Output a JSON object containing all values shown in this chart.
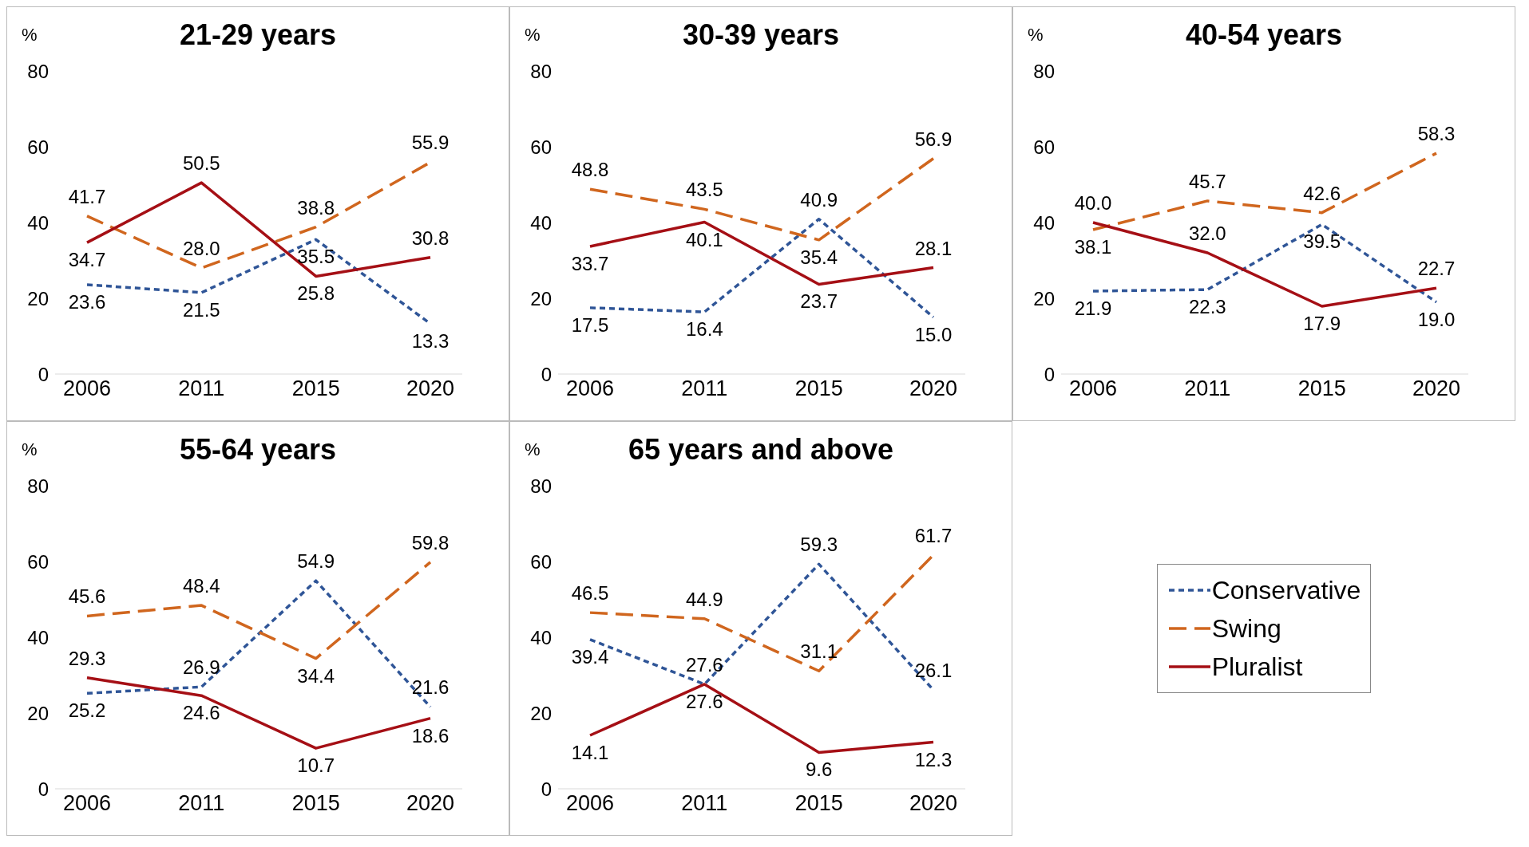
{
  "chart_data": [
    {
      "type": "line",
      "title": "21-29 years",
      "ylabel": "%",
      "categories": [
        "2006",
        "2011",
        "2015",
        "2020"
      ],
      "ylim": [
        0,
        80
      ],
      "yticks": [
        0,
        20,
        40,
        60,
        80
      ],
      "grid": false,
      "marker": "none",
      "series": [
        {
          "color": "#2f5597",
          "line_style": "dotted",
          "values": [
            23.6,
            21.5,
            35.5,
            13.3
          ],
          "value_labels": [
            "23.6",
            "21.5",
            "35.5",
            "13.3"
          ]
        },
        {
          "color": "#d0661e",
          "line_style": "dashed",
          "values": [
            41.7,
            28.0,
            38.8,
            55.9
          ],
          "value_labels": [
            "41.7",
            "28.0",
            "38.8",
            "55.9"
          ]
        },
        {
          "color": "#a50f15",
          "line_style": "solid",
          "values": [
            34.7,
            50.5,
            25.8,
            30.8
          ],
          "value_labels": [
            "34.7",
            "50.5",
            "25.8",
            "30.8"
          ]
        }
      ]
    },
    {
      "type": "line",
      "title": "30-39 years",
      "ylabel": "%",
      "categories": [
        "2006",
        "2011",
        "2015",
        "2020"
      ],
      "ylim": [
        0,
        80
      ],
      "yticks": [
        0,
        20,
        40,
        60,
        80
      ],
      "grid": false,
      "marker": "none",
      "series": [
        {
          "color": "#2f5597",
          "line_style": "dotted",
          "values": [
            17.5,
            16.4,
            40.9,
            15.0
          ],
          "value_labels": [
            "17.5",
            "16.4",
            "40.9",
            "15.0"
          ]
        },
        {
          "color": "#d0661e",
          "line_style": "dashed",
          "values": [
            48.8,
            43.5,
            35.4,
            56.9
          ],
          "value_labels": [
            "48.8",
            "43.5",
            "35.4",
            "56.9"
          ]
        },
        {
          "color": "#a50f15",
          "line_style": "solid",
          "values": [
            33.7,
            40.1,
            23.7,
            28.1
          ],
          "value_labels": [
            "33.7",
            "40.1",
            "23.7",
            "28.1"
          ]
        }
      ]
    },
    {
      "type": "line",
      "title": "40-54 years",
      "ylabel": "%",
      "categories": [
        "2006",
        "2011",
        "2015",
        "2020"
      ],
      "ylim": [
        0,
        80
      ],
      "yticks": [
        0,
        20,
        40,
        60,
        80
      ],
      "grid": false,
      "marker": "none",
      "series": [
        {
          "color": "#2f5597",
          "line_style": "dotted",
          "values": [
            21.9,
            22.3,
            39.5,
            19.0
          ],
          "value_labels": [
            "21.9",
            "22.3",
            "39.5",
            "19.0"
          ]
        },
        {
          "color": "#d0661e",
          "line_style": "dashed",
          "values": [
            38.1,
            45.7,
            42.6,
            58.3
          ],
          "value_labels": [
            "38.1",
            "45.7",
            "42.6",
            "58.3"
          ]
        },
        {
          "color": "#a50f15",
          "line_style": "solid",
          "values": [
            40.0,
            32.0,
            17.9,
            22.7
          ],
          "value_labels": [
            "40.0",
            "32.0",
            "17.9",
            "22.7"
          ]
        }
      ]
    },
    {
      "type": "line",
      "title": "55-64 years",
      "ylabel": "%",
      "categories": [
        "2006",
        "2011",
        "2015",
        "2020"
      ],
      "ylim": [
        0,
        80
      ],
      "yticks": [
        0,
        20,
        40,
        60,
        80
      ],
      "grid": false,
      "marker": "none",
      "series": [
        {
          "color": "#2f5597",
          "line_style": "dotted",
          "values": [
            25.2,
            26.9,
            54.9,
            21.6
          ],
          "value_labels": [
            "25.2",
            "26.9",
            "54.9",
            "21.6"
          ]
        },
        {
          "color": "#d0661e",
          "line_style": "dashed",
          "values": [
            45.6,
            48.4,
            34.4,
            59.8
          ],
          "value_labels": [
            "45.6",
            "48.4",
            "34.4",
            "59.8"
          ]
        },
        {
          "color": "#a50f15",
          "line_style": "solid",
          "values": [
            29.3,
            24.6,
            10.7,
            18.6
          ],
          "value_labels": [
            "29.3",
            "24.6",
            "10.7",
            "18.6"
          ]
        }
      ]
    },
    {
      "type": "line",
      "title": "65 years and above",
      "ylabel": "%",
      "categories": [
        "2006",
        "2011",
        "2015",
        "2020"
      ],
      "ylim": [
        0,
        80
      ],
      "yticks": [
        0,
        20,
        40,
        60,
        80
      ],
      "grid": false,
      "legend": "right",
      "marker": "none",
      "series": [
        {
          "name": "Conservative",
          "color": "#2f5597",
          "line_style": "dotted",
          "values": [
            39.4,
            27.6,
            59.3,
            26.1
          ],
          "value_labels": [
            "39.4",
            "27.6",
            "59.3",
            "26.1"
          ]
        },
        {
          "name": "Swing",
          "color": "#d0661e",
          "line_style": "dashed",
          "values": [
            46.5,
            44.9,
            31.1,
            61.7
          ],
          "value_labels": [
            "46.5",
            "44.9",
            "31.1",
            "61.7"
          ]
        },
        {
          "name": "Pluralist",
          "color": "#a50f15",
          "line_style": "solid",
          "values": [
            14.1,
            27.6,
            9.6,
            12.3
          ],
          "value_labels": [
            "14.1",
            "27.6",
            "9.6",
            "12.3"
          ]
        }
      ]
    }
  ]
}
